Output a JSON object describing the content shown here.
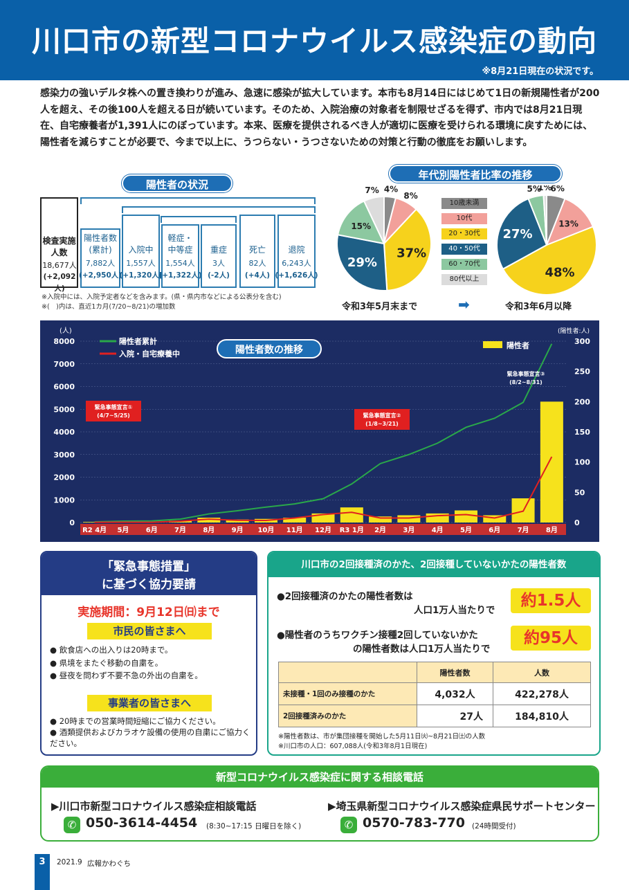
{
  "header": {
    "title": "川口市の新型コロナウイルス感染症の動向",
    "note": "※8月21日現在の状況です。"
  },
  "intro": "感染力の強いデルタ株への置き換わりが進み、急速に感染が拡大しています。本市も8月14日にはじめて1日の新規陽性者が200人を超え、その後100人を超える日が続いています。そのため、入院治療の対象者を制限せざるを得ず、市内では8月21日現在、自宅療養者が1,391人にのぼっています。本来、医療を提供されるべき人が適切に医療を受けられる環境に戻すためには、陽性者を減らすことが必要で、今まで以上に、うつらない・うつさないための対策と行動の徹底をお願いします。",
  "status": {
    "title": "陽性者の状況",
    "tests": {
      "label1": "検査実施",
      "label2": "人数",
      "value": "18,677人",
      "delta": "(+2,092人)"
    },
    "positive": {
      "label1": "陽性者数",
      "label2": "(累計)",
      "value": "7,882人",
      "delta": "(+2,950人)"
    },
    "hospital": {
      "label": "入院中",
      "value": "1,557人",
      "delta": "(+1,320人)"
    },
    "mild": {
      "label1": "軽症・",
      "label2": "中等症",
      "value": "1,554人",
      "delta": "(+1,322人)"
    },
    "severe": {
      "label": "重症",
      "value": "3人",
      "delta": "(-2人)"
    },
    "death": {
      "label": "死亡",
      "value": "82人",
      "delta": "(+4人)"
    },
    "discharge": {
      "label": "退院",
      "value": "6,243人",
      "delta": "(+1,626人)"
    },
    "note1": "※入院中には、入院予定者などを含みます。(県・県内市などによる公表分を含む)",
    "note2": "※(　)内は、直近1カ月(7/20~8/21)の増加数"
  },
  "age": {
    "title": "年代別陽性者比率の推移",
    "legend": [
      "10歳未満",
      "10代",
      "20・30代",
      "40・50代",
      "60・70代",
      "80代以上"
    ],
    "colors": [
      "#8a8a8a",
      "#f2a09a",
      "#f6d21c",
      "#1e5f86",
      "#8cc8a0",
      "#dcdcdc"
    ],
    "pie1": {
      "caption": "令和3年5月末まで",
      "values": [
        4,
        8,
        37,
        29,
        15,
        7
      ]
    },
    "pie2": {
      "caption": "令和3年6月以降",
      "values": [
        6,
        13,
        48,
        27,
        5,
        1
      ]
    },
    "arrow": "➡"
  },
  "chart_data": {
    "type": "bar",
    "title": "陽性者数の推移",
    "y_left_unit": "(人)",
    "y_right_unit": "(陽性者:人)",
    "y_left_ticks": [
      "8000",
      "7000",
      "6000",
      "5000",
      "4000",
      "3000",
      "2000",
      "1000",
      "0"
    ],
    "y_right_ticks": [
      "300",
      "250",
      "200",
      "150",
      "100",
      "50",
      "0"
    ],
    "ylim_left": [
      0,
      8000
    ],
    "ylim_right": [
      0,
      300
    ],
    "months": [
      "R2 4月",
      "5月",
      "6月",
      "7月",
      "8月",
      "9月",
      "10月",
      "11月",
      "12月",
      "R3 1月",
      "2月",
      "3月",
      "4月",
      "5月",
      "6月",
      "7月",
      "8月"
    ],
    "series": [
      {
        "name": "陽性者累計",
        "axis": "left",
        "color": "#2aa84a",
        "values": [
          30,
          60,
          70,
          150,
          380,
          520,
          680,
          820,
          1050,
          1700,
          2600,
          3000,
          3500,
          4200,
          4600,
          5300,
          7882
        ]
      },
      {
        "name": "入院・自宅療養中",
        "axis": "left",
        "color": "#e02020",
        "values": [
          10,
          15,
          10,
          60,
          150,
          100,
          90,
          200,
          350,
          450,
          200,
          200,
          300,
          350,
          200,
          500,
          2900
        ]
      },
      {
        "name": "陽性者",
        "axis": "right",
        "color": "#f6e21c",
        "values": [
          1,
          1,
          0,
          3,
          8,
          5,
          6,
          8,
          15,
          25,
          10,
          12,
          15,
          20,
          12,
          40,
          200
        ]
      }
    ],
    "annotations": [
      {
        "label": "緊急事態宣言①",
        "period": "(4/7~5/25)"
      },
      {
        "label": "緊急事態宣言②",
        "period": "(1/8~3/21)"
      },
      {
        "label": "緊急事態宣言③",
        "period": "(8/2~8/31)"
      }
    ]
  },
  "request": {
    "title1": "「緊急事態措置」",
    "title2": "に基づく協力要請",
    "period": "実施期間：9月12日㈰まで",
    "citizens": "市民の皆さまへ",
    "citizen_items": [
      "飲食店への出入りは20時まで。",
      "県境をまたぐ移動の自粛を。",
      "昼夜を問わず不要不急の外出の自粛を。"
    ],
    "business": "事業者の皆さまへ",
    "business_items": [
      "20時までの営業時間短縮にご協力ください。",
      "酒類提供およびカラオケ設備の使用の自粛にご協力ください。"
    ]
  },
  "vaccine": {
    "title": "川口市の2回接種済のかた、2回接種していないかたの陽性者数",
    "item1a": "●2回接種済のかたの陽性者数は",
    "item1b": "人口1万人当たりで",
    "item1v": "約1.5人",
    "item2a": "●陽性者のうちワクチン接種2回していないかた",
    "item2b": "の陽性者数は人口1万人当たりで",
    "item2v": "約95人",
    "headers": [
      "",
      "陽性者数",
      "人数"
    ],
    "rows": [
      [
        "未接種・1回のみ接種のかた",
        "4,032人",
        "422,278人"
      ],
      [
        "2回接種済みのかた",
        "27人",
        "184,810人"
      ]
    ],
    "note1": "※陽性者数は、市が集団接種を開始した5月11日㈫~8月21日㈯の人数",
    "note2": "※川口市の人口：607,088人(令和3年8月1日現在)"
  },
  "consult": {
    "title": "新型コロナウイルス感染症に関する相談電話",
    "left_name": "▶川口市新型コロナウイルス感染症相談電話",
    "left_tel": "050-3614-4454",
    "left_hours": "(8:30~17:15 日曜日を除く)",
    "right_name": "▶埼玉県新型コロナウイルス感染症県民サポートセンター",
    "right_tel": "0570-783-770",
    "right_hours": "(24時間受付)"
  },
  "footer": {
    "page": "3",
    "issue": "2021.9",
    "name": "広報かわぐち"
  }
}
